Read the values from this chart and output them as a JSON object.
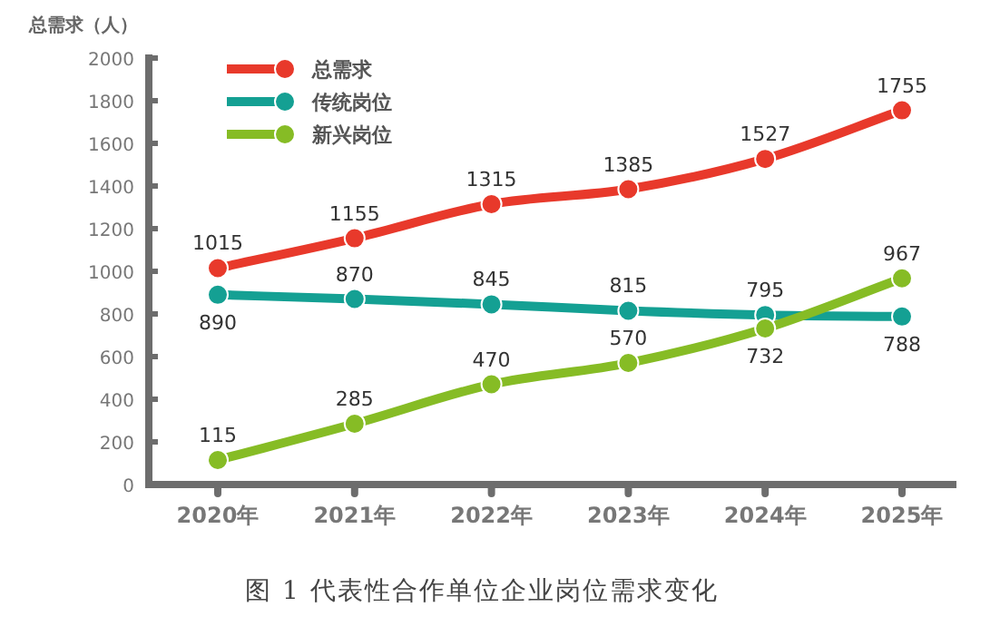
{
  "chart_data": {
    "type": "line",
    "title": "图 1  代表性合作单位企业岗位需求变化",
    "ylabel": "总需求（人）",
    "categories": [
      "2020年",
      "2021年",
      "2022年",
      "2023年",
      "2024年",
      "2025年"
    ],
    "series": [
      {
        "name": "总需求",
        "color": "#e8392b",
        "values": [
          1015,
          1155,
          1315,
          1385,
          1527,
          1755
        ]
      },
      {
        "name": "传统岗位",
        "color": "#14a093",
        "values": [
          890,
          870,
          845,
          815,
          795,
          788
        ]
      },
      {
        "name": "新兴岗位",
        "color": "#86bc25",
        "values": [
          115,
          285,
          470,
          570,
          732,
          967
        ]
      }
    ],
    "ylim": [
      0,
      2000
    ],
    "yticks": [
      0,
      200,
      400,
      600,
      800,
      1000,
      1200,
      1400,
      1600,
      1800,
      2000
    ],
    "marker": "circle",
    "line_style": "solid",
    "data_labels": true,
    "legend": "top left",
    "grid": false
  }
}
